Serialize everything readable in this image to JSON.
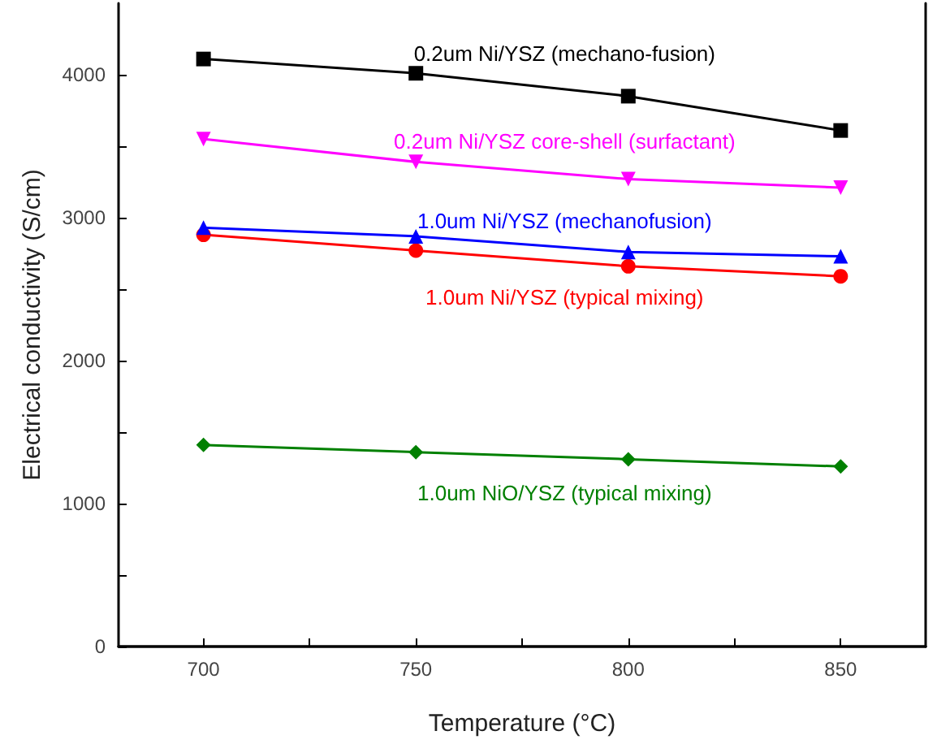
{
  "chart_data": {
    "type": "line",
    "xlabel": "Temperature (°C)",
    "ylabel": "Electrical conductivity (S/cm)",
    "x": [
      700,
      750,
      800,
      850
    ],
    "series": [
      {
        "name": "0.2um Ni/YSZ (mechano-fusion)",
        "color": "#000000",
        "marker": "square",
        "values": [
          4110,
          4010,
          3850,
          3610
        ]
      },
      {
        "name": "0.2um Ni/YSZ core-shell (surfactant)",
        "color": "#ff00ff",
        "marker": "triangle-down",
        "values": [
          3550,
          3390,
          3270,
          3210
        ]
      },
      {
        "name": "1.0um Ni/YSZ (mechanofusion)",
        "color": "#0000ff",
        "marker": "triangle",
        "values": [
          2930,
          2870,
          2760,
          2730
        ]
      },
      {
        "name": "1.0um Ni/YSZ (typical mixing)",
        "color": "#ff0000",
        "marker": "circle",
        "values": [
          2880,
          2770,
          2660,
          2590
        ]
      },
      {
        "name": "1.0um NiO/YSZ (typical mixing)",
        "color": "#008000",
        "marker": "diamond",
        "values": [
          1410,
          1360,
          1310,
          1260
        ]
      }
    ],
    "xlim": [
      680,
      870
    ],
    "xticks": [
      700,
      {
        "value": 725,
        "label": null
      },
      750,
      {
        "value": 775,
        "label": null
      },
      800,
      {
        "value": 825,
        "label": null
      },
      850
    ],
    "ylim": [
      0,
      4500
    ],
    "yticks": [
      0,
      {
        "value": 500,
        "label": null
      },
      1000,
      {
        "value": 1500,
        "label": null
      },
      2000,
      {
        "value": 2500,
        "label": null
      },
      3000,
      {
        "value": 3500,
        "label": null
      },
      4000
    ],
    "grid": false,
    "legend": false,
    "line_style": "solid"
  }
}
